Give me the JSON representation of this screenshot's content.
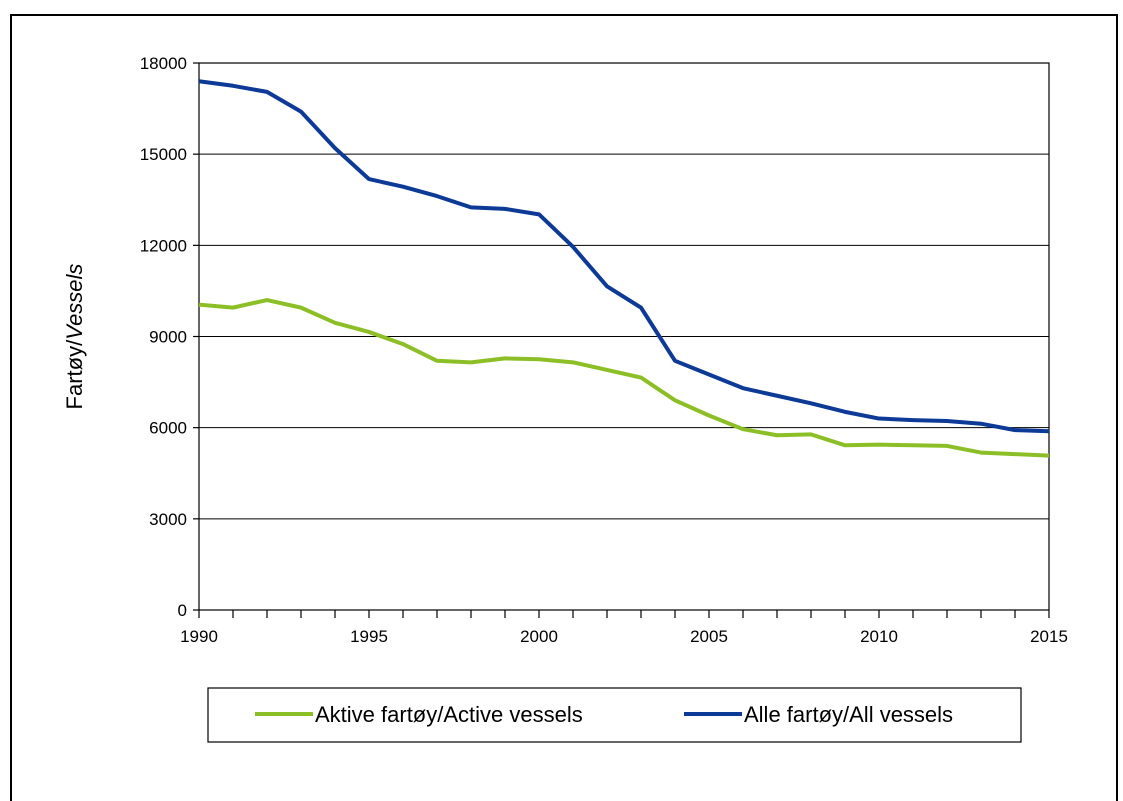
{
  "chart_data": {
    "type": "line",
    "title": "",
    "xlabel": "",
    "ylabel_plain": "Fartøy/",
    "ylabel_italic": "Vessels",
    "xlim": [
      1990,
      2015
    ],
    "ylim": [
      0,
      18000
    ],
    "x_ticks": [
      1990,
      1995,
      2000,
      2005,
      2010,
      2015
    ],
    "y_ticks": [
      0,
      3000,
      6000,
      9000,
      12000,
      15000,
      18000
    ],
    "grid": "horizontal",
    "legend_position": "bottom",
    "x": [
      1990,
      1991,
      1992,
      1993,
      1994,
      1995,
      1996,
      1997,
      1998,
      1999,
      2000,
      2001,
      2002,
      2003,
      2004,
      2005,
      2006,
      2007,
      2008,
      2009,
      2010,
      2011,
      2012,
      2013,
      2014,
      2015
    ],
    "series": [
      {
        "name": "Aktive fartøy/Active vessels",
        "color": "#8CBF26",
        "values": [
          10050,
          9950,
          10200,
          9950,
          9450,
          9150,
          8750,
          8200,
          8150,
          8280,
          8250,
          8150,
          7900,
          7650,
          6900,
          6400,
          5950,
          5750,
          5780,
          5420,
          5440,
          5420,
          5400,
          5180,
          5130,
          5080
        ]
      },
      {
        "name": "Alle fartøy/All vessels",
        "color": "#0C3A96",
        "values": [
          17400,
          17250,
          17050,
          16400,
          15200,
          14180,
          13930,
          13620,
          13250,
          13200,
          13020,
          11950,
          10650,
          9950,
          8200,
          7750,
          7300,
          7050,
          6800,
          6520,
          6300,
          6250,
          6220,
          6130,
          5920,
          5880
        ]
      }
    ]
  }
}
